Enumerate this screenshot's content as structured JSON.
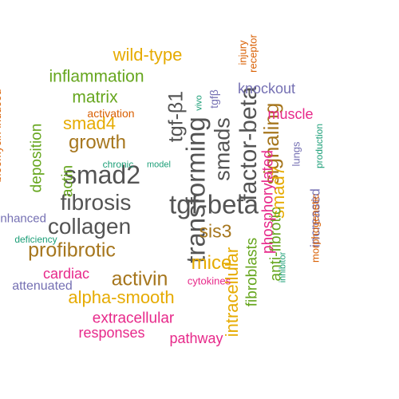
{
  "colors": {
    "gray": "#545454",
    "brown": "#A6761D",
    "gold": "#E6AB02",
    "green": "#66A61E",
    "magenta": "#E7298A",
    "purple": "#7570B3",
    "orange": "#D95F02",
    "teal": "#1B9E77"
  },
  "words": [
    {
      "text": "transforming",
      "color": "gray",
      "rotated": true
    },
    {
      "text": "tgf-beta",
      "color": "gray",
      "rotated": false
    },
    {
      "text": "smad2",
      "color": "gray",
      "rotated": false
    },
    {
      "text": "factor-beta",
      "color": "gray",
      "rotated": true
    },
    {
      "text": "smads",
      "color": "gray",
      "rotated": true
    },
    {
      "text": "collagen",
      "color": "gray",
      "rotated": false
    },
    {
      "text": "fibrosis",
      "color": "gray",
      "rotated": false
    },
    {
      "text": "tgf-β1",
      "color": "gray",
      "rotated": true
    },
    {
      "text": "signaling",
      "color": "brown",
      "rotated": true
    },
    {
      "text": "profibrotic",
      "color": "brown",
      "rotated": false
    },
    {
      "text": "activin",
      "color": "brown",
      "rotated": false
    },
    {
      "text": "growth",
      "color": "brown",
      "rotated": false
    },
    {
      "text": "sis3",
      "color": "brown",
      "rotated": false
    },
    {
      "text": "smad4",
      "color": "gold",
      "rotated": false
    },
    {
      "text": "mice",
      "color": "gold",
      "rotated": false
    },
    {
      "text": "alpha-smooth",
      "color": "gold",
      "rotated": false
    },
    {
      "text": "intracellular",
      "color": "gold",
      "rotated": true
    },
    {
      "text": "smad7",
      "color": "gold",
      "rotated": true
    },
    {
      "text": "wild-type",
      "color": "gold",
      "rotated": false
    },
    {
      "text": "inflammation",
      "color": "green",
      "rotated": false
    },
    {
      "text": "matrix",
      "color": "green",
      "rotated": false
    },
    {
      "text": "fibroblasts",
      "color": "green",
      "rotated": true
    },
    {
      "text": "anti-fibrotic",
      "color": "green",
      "rotated": true
    },
    {
      "text": "deposition",
      "color": "green",
      "rotated": true
    },
    {
      "text": "actin",
      "color": "green",
      "rotated": true
    },
    {
      "text": "phosphorylated",
      "color": "magenta",
      "rotated": true
    },
    {
      "text": "extracellular",
      "color": "magenta",
      "rotated": false
    },
    {
      "text": "cardiac",
      "color": "magenta",
      "rotated": false
    },
    {
      "text": "responses",
      "color": "magenta",
      "rotated": false
    },
    {
      "text": "pathway",
      "color": "magenta",
      "rotated": false
    },
    {
      "text": "muscle",
      "color": "magenta",
      "rotated": false
    },
    {
      "text": "knockout",
      "color": "purple",
      "rotated": false
    },
    {
      "text": "enhanced",
      "color": "purple",
      "rotated": false
    },
    {
      "text": "attenuated",
      "color": "purple",
      "rotated": false
    },
    {
      "text": "increased",
      "color": "purple",
      "rotated": true
    },
    {
      "text": "lungs",
      "color": "purple",
      "rotated": true
    },
    {
      "text": "tgfβ",
      "color": "purple",
      "rotated": true
    },
    {
      "text": "bleomycin-induced",
      "color": "orange",
      "rotated": true
    },
    {
      "text": "activation",
      "color": "orange",
      "rotated": false
    },
    {
      "text": "receptor",
      "color": "orange",
      "rotated": true
    },
    {
      "text": "injury",
      "color": "orange",
      "rotated": true
    },
    {
      "text": "morphogenetic",
      "color": "orange",
      "rotated": true
    },
    {
      "text": "cytokines",
      "color": "magenta",
      "rotated": false
    },
    {
      "text": "chronic",
      "color": "teal",
      "rotated": false
    },
    {
      "text": "model",
      "color": "teal",
      "rotated": false
    },
    {
      "text": "vivo",
      "color": "teal",
      "rotated": true
    },
    {
      "text": "deficiency",
      "color": "teal",
      "rotated": false
    },
    {
      "text": "inhibitor",
      "color": "teal",
      "rotated": true
    },
    {
      "text": "production",
      "color": "teal",
      "rotated": true
    }
  ]
}
